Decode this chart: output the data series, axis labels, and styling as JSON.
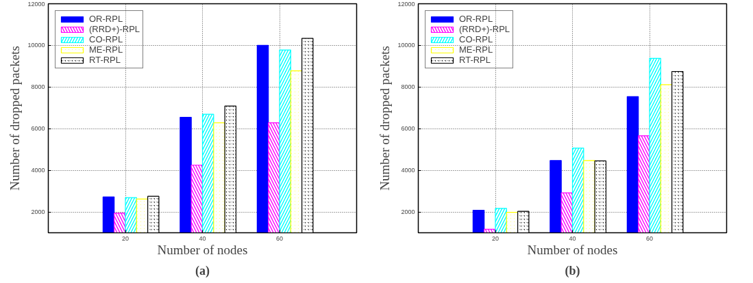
{
  "chart_data": [
    {
      "type": "bar",
      "title": "(a)",
      "xlabel": "Number of nodes",
      "ylabel": "Number of dropped packets",
      "x": [
        20,
        40,
        60
      ],
      "xlim": [
        0,
        80
      ],
      "xticks": [
        20,
        40,
        60
      ],
      "ylim": [
        1000,
        12000
      ],
      "yticks": [
        2000,
        4000,
        6000,
        8000,
        10000,
        12000
      ],
      "grid": true,
      "legend": "top left",
      "series": [
        {
          "name": "OR-RPL",
          "color": "#0000ff",
          "values": [
            2720,
            6550,
            10000
          ]
        },
        {
          "name": "(RRD+)-RPL",
          "color": "#ff00ff",
          "values": [
            1940,
            4250,
            6280
          ]
        },
        {
          "name": "CO-RPL",
          "color": "#00ffff",
          "values": [
            2690,
            6690,
            9780
          ]
        },
        {
          "name": "ME-RPL",
          "color": "#ffff00",
          "values": [
            2620,
            6280,
            8780
          ]
        },
        {
          "name": "RT-RPL",
          "color": "#000000",
          "values": [
            2750,
            7090,
            10340
          ]
        }
      ]
    },
    {
      "type": "bar",
      "title": "(b)",
      "xlabel": "Number of nodes",
      "ylabel": "Number of dropped packets",
      "x": [
        20,
        40,
        60
      ],
      "xlim": [
        0,
        80
      ],
      "xticks": [
        20,
        40,
        60
      ],
      "ylim": [
        1000,
        12000
      ],
      "yticks": [
        2000,
        4000,
        6000,
        8000,
        10000,
        12000
      ],
      "grid": true,
      "legend": "top left",
      "series": [
        {
          "name": "OR-RPL",
          "color": "#0000ff",
          "values": [
            2080,
            4470,
            7540
          ]
        },
        {
          "name": "(RRD+)-RPL",
          "color": "#ff00ff",
          "values": [
            1170,
            2920,
            5660
          ]
        },
        {
          "name": "CO-RPL",
          "color": "#00ffff",
          "values": [
            2170,
            5070,
            9380
          ]
        },
        {
          "name": "ME-RPL",
          "color": "#ffff00",
          "values": [
            1980,
            4470,
            8110
          ]
        },
        {
          "name": "RT-RPL",
          "color": "#000000",
          "values": [
            2030,
            4450,
            8750
          ]
        }
      ]
    }
  ]
}
